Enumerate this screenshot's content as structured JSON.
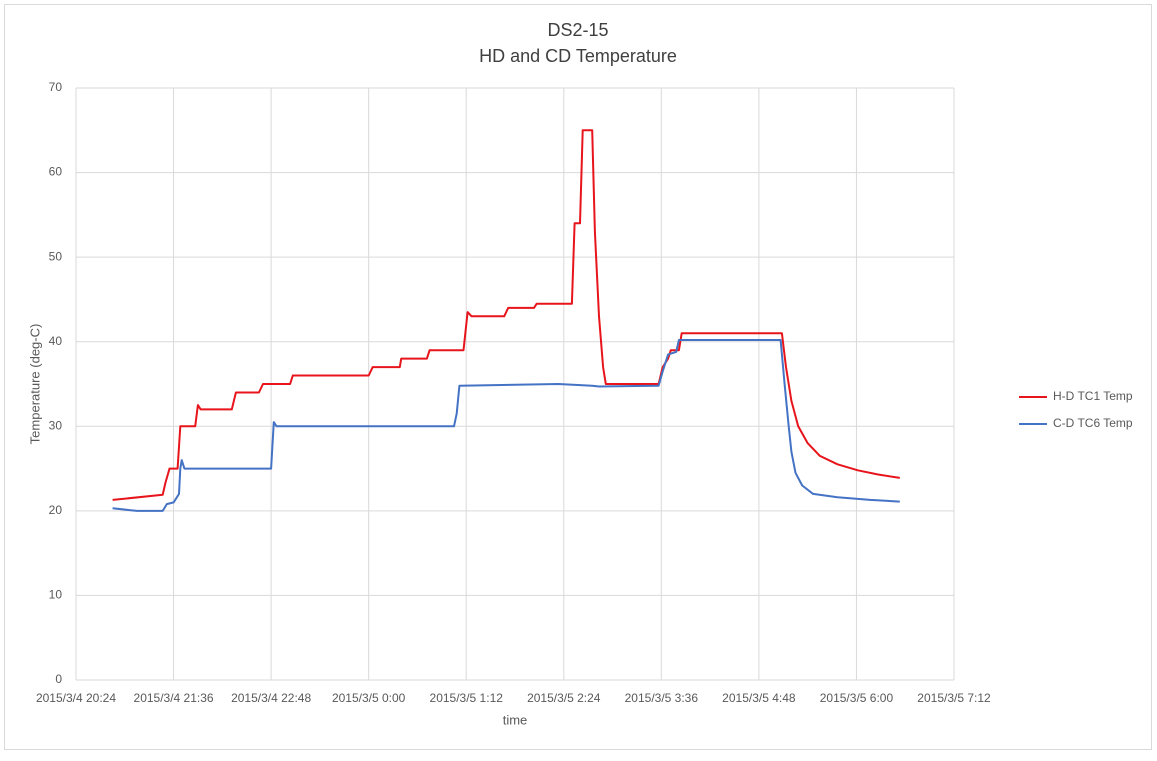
{
  "chart_data": {
    "type": "line",
    "title": "DS2-15",
    "subtitle": "HD and CD Temperature",
    "x_label": "time",
    "y_label": "Temperature (deg-C)",
    "xlim": [
      "2015/3/4 20:24",
      "2015/3/5 7:12"
    ],
    "xticks": [
      "2015/3/4 20:24",
      "2015/3/4 21:36",
      "2015/3/4 22:48",
      "2015/3/5 0:00",
      "2015/3/5 1:12",
      "2015/3/5 2:24",
      "2015/3/5 3:36",
      "2015/3/5 4:48",
      "2015/3/5 6:00",
      "2015/3/5 7:12"
    ],
    "ylim": [
      0,
      70
    ],
    "yticks": [
      0,
      10,
      20,
      30,
      40,
      50,
      60,
      70
    ],
    "grid": true,
    "legend": "right",
    "series": [
      {
        "name": "H-D TC1 Temp",
        "color": "#e8141b",
        "x": [
          "2015/3/4 20:51",
          "2015/3/4 21:28",
          "2015/3/4 21:30",
          "2015/3/4 21:33",
          "2015/3/4 21:39",
          "2015/3/4 21:41",
          "2015/3/4 21:52",
          "2015/3/4 21:54",
          "2015/3/4 21:56",
          "2015/3/4 22:19",
          "2015/3/4 22:22",
          "2015/3/4 22:39",
          "2015/3/4 22:42",
          "2015/3/4 23:02",
          "2015/3/4 23:04",
          "2015/3/5 0:00",
          "2015/3/5 0:03",
          "2015/3/5 0:23",
          "2015/3/5 0:24",
          "2015/3/5 0:43",
          "2015/3/5 0:45",
          "2015/3/5 1:10",
          "2015/3/5 1:13",
          "2015/3/5 1:16",
          "2015/3/5 1:40",
          "2015/3/5 1:43",
          "2015/3/5 2:02",
          "2015/3/5 2:04",
          "2015/3/5 2:30",
          "2015/3/5 2:32",
          "2015/3/5 2:36",
          "2015/3/5 2:38",
          "2015/3/5 2:45",
          "2015/3/5 2:47",
          "2015/3/5 2:50",
          "2015/3/5 2:53",
          "2015/3/5 2:55",
          "2015/3/5 3:34",
          "2015/3/5 3:37",
          "2015/3/5 3:41",
          "2015/3/5 3:43",
          "2015/3/5 3:49",
          "2015/3/5 3:51",
          "2015/3/5 4:18",
          "2015/3/5 5:05",
          "2015/3/5 5:08",
          "2015/3/5 5:12",
          "2015/3/5 5:17",
          "2015/3/5 5:24",
          "2015/3/5 5:33",
          "2015/3/5 5:46",
          "2015/3/5 6:01",
          "2015/3/5 6:16",
          "2015/3/5 6:32"
        ],
        "values": [
          21.3,
          21.9,
          23.3,
          25,
          25,
          30,
          30,
          32.5,
          32,
          32,
          34,
          34,
          35,
          35,
          36,
          36,
          37,
          37,
          38,
          38,
          39,
          39,
          43.5,
          43,
          43,
          44,
          44,
          44.5,
          44.5,
          54,
          54,
          65,
          65,
          53,
          43,
          37,
          35,
          35,
          37,
          38,
          39,
          39,
          41,
          41,
          41,
          37,
          33,
          30,
          28,
          26.5,
          25.5,
          24.8,
          24.3,
          23.9
        ]
      },
      {
        "name": "C-D TC6 Temp",
        "color": "#4472c4",
        "x": [
          "2015/3/4 20:51",
          "2015/3/4 21:09",
          "2015/3/4 21:28",
          "2015/3/4 21:31",
          "2015/3/4 21:36",
          "2015/3/4 21:38",
          "2015/3/4 21:40",
          "2015/3/4 21:41",
          "2015/3/4 21:42",
          "2015/3/4 21:44",
          "2015/3/4 22:48",
          "2015/3/4 22:50",
          "2015/3/4 22:52",
          "2015/3/5 1:03",
          "2015/3/5 1:05",
          "2015/3/5 1:07",
          "2015/3/5 2:20",
          "2015/3/5 2:45",
          "2015/3/5 2:50",
          "2015/3/5 3:34",
          "2015/3/5 3:37",
          "2015/3/5 3:41",
          "2015/3/5 3:47",
          "2015/3/5 3:49",
          "2015/3/5 5:04",
          "2015/3/5 5:07",
          "2015/3/5 5:10",
          "2015/3/5 5:12",
          "2015/3/5 5:15",
          "2015/3/5 5:20",
          "2015/3/5 5:28",
          "2015/3/5 5:46",
          "2015/3/5 6:10",
          "2015/3/5 6:32"
        ],
        "values": [
          20.3,
          20,
          20,
          20.8,
          21,
          21.5,
          22,
          25,
          26,
          25,
          25,
          30.5,
          30,
          30,
          31.5,
          34.8,
          35,
          34.8,
          34.7,
          34.8,
          36.5,
          38.5,
          38.8,
          40.2,
          40.2,
          35,
          30,
          27,
          24.5,
          23,
          22,
          21.6,
          21.3,
          21.1
        ]
      }
    ]
  }
}
